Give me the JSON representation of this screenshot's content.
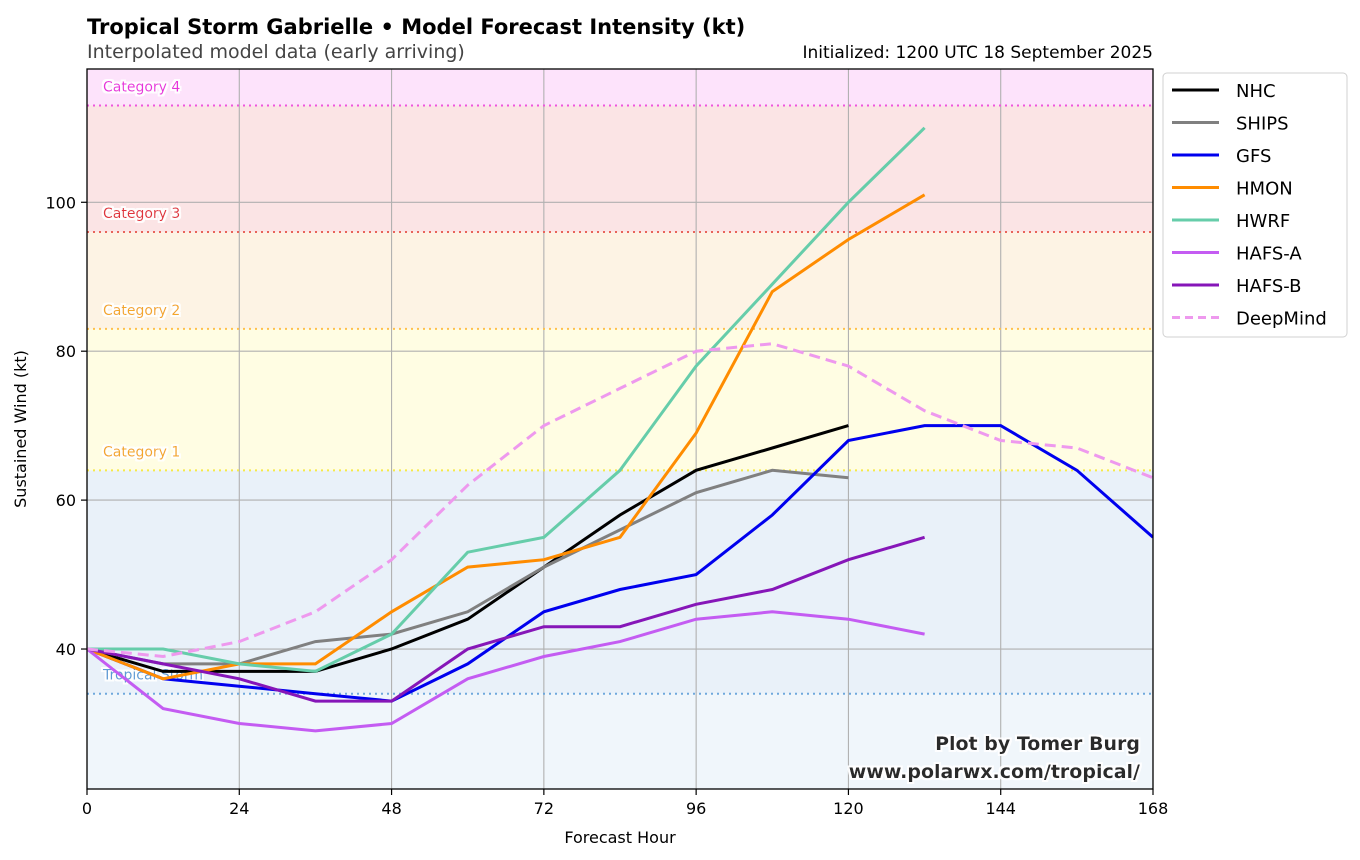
{
  "header": {
    "title": "Tropical Storm Gabrielle • Model Forecast Intensity (kt)",
    "subtitle": "Interpolated model data (early arriving)",
    "initialized": "Initialized: 1200 UTC 18 September 2025"
  },
  "credit": {
    "line1": "Plot by Tomer Burg",
    "line2": "www.polarwx.com/tropical/"
  },
  "chart_data": {
    "type": "line",
    "title": "Tropical Storm Gabrielle • Model Forecast Intensity (kt)",
    "subtitle": "Interpolated model data (early arriving)",
    "xlabel": "Forecast Hour",
    "ylabel": "Sustained Wind (kt)",
    "xlim": [
      0,
      168
    ],
    "ylim": [
      21.2,
      117.9
    ],
    "xticks": [
      0,
      24,
      48,
      72,
      96,
      120,
      144,
      168
    ],
    "yticks": [
      40,
      60,
      80,
      100
    ],
    "grid": true,
    "legend_position": "outside-top-right",
    "categories_bands": [
      {
        "name": "Tropical Storm",
        "threshold": 34,
        "line_color": "#6fa8dc",
        "fill": "#f0f6fb",
        "label_color": "#5b9bd5"
      },
      {
        "name": "Category 1",
        "threshold": 64,
        "line_color": "#f5e94a",
        "fill": "#e9f1f9",
        "label_color": "#f3a72a"
      },
      {
        "name": "Category 2",
        "threshold": 83,
        "line_color": "#ffc04d",
        "fill": "#fffde3",
        "label_color": "#f3a72a"
      },
      {
        "name": "Category 3",
        "threshold": 96,
        "line_color": "#e8645a",
        "fill": "#fdf3e4",
        "label_color": "#e0303a"
      },
      {
        "name": "Category 4",
        "threshold": 113,
        "line_color": "#ee55dd",
        "fill": "#fbe4e5",
        "label_color": "#e830dc"
      }
    ],
    "top_fill": "#fde3fb",
    "series": [
      {
        "name": "NHC",
        "color": "#000000",
        "dashed": false,
        "x": [
          0,
          12,
          24,
          36,
          48,
          60,
          72,
          84,
          96,
          108,
          120
        ],
        "y": [
          40,
          37,
          37,
          37,
          40,
          44,
          51,
          58,
          64,
          67,
          70
        ]
      },
      {
        "name": "SHIPS",
        "color": "#808080",
        "dashed": false,
        "x": [
          0,
          12,
          24,
          36,
          48,
          60,
          72,
          84,
          96,
          108,
          120
        ],
        "y": [
          40,
          38,
          38,
          41,
          42,
          45,
          51,
          56,
          61,
          64,
          63
        ]
      },
      {
        "name": "GFS",
        "color": "#0000ee",
        "dashed": false,
        "x": [
          0,
          12,
          24,
          36,
          48,
          60,
          72,
          84,
          96,
          108,
          120,
          132,
          144,
          156,
          168
        ],
        "y": [
          40,
          36,
          35,
          34,
          33,
          38,
          45,
          48,
          50,
          58,
          68,
          70,
          70,
          64,
          55
        ]
      },
      {
        "name": "HMON",
        "color": "#ff8c00",
        "dashed": false,
        "x": [
          0,
          12,
          24,
          36,
          48,
          60,
          72,
          84,
          96,
          108,
          120,
          132
        ],
        "y": [
          40,
          36,
          38,
          38,
          45,
          51,
          52,
          55,
          69,
          88,
          95,
          101
        ]
      },
      {
        "name": "HWRF",
        "color": "#66cdaa",
        "dashed": false,
        "x": [
          0,
          12,
          24,
          36,
          48,
          60,
          72,
          84,
          96,
          108,
          120,
          132
        ],
        "y": [
          40,
          40,
          38,
          37,
          42,
          53,
          55,
          64,
          78,
          89,
          100,
          110
        ]
      },
      {
        "name": "HAFS-A",
        "color": "#c45cf2",
        "dashed": false,
        "x": [
          0,
          12,
          24,
          36,
          48,
          60,
          72,
          84,
          96,
          108,
          120,
          132
        ],
        "y": [
          40,
          32,
          30,
          29,
          30,
          36,
          39,
          41,
          44,
          45,
          44,
          42
        ]
      },
      {
        "name": "HAFS-B",
        "color": "#8616b8",
        "dashed": false,
        "x": [
          0,
          12,
          24,
          36,
          48,
          60,
          72,
          84,
          96,
          108,
          120,
          132
        ],
        "y": [
          40,
          38,
          36,
          33,
          33,
          40,
          43,
          43,
          46,
          48,
          52,
          55
        ]
      },
      {
        "name": "DeepMind",
        "color": "#ee99ee",
        "dashed": true,
        "x": [
          0,
          12,
          24,
          36,
          48,
          60,
          72,
          84,
          96,
          108,
          120,
          132,
          144,
          156,
          168
        ],
        "y": [
          40,
          39,
          41,
          45,
          52,
          62,
          70,
          75,
          80,
          81,
          78,
          72,
          68,
          67,
          63
        ]
      }
    ]
  }
}
